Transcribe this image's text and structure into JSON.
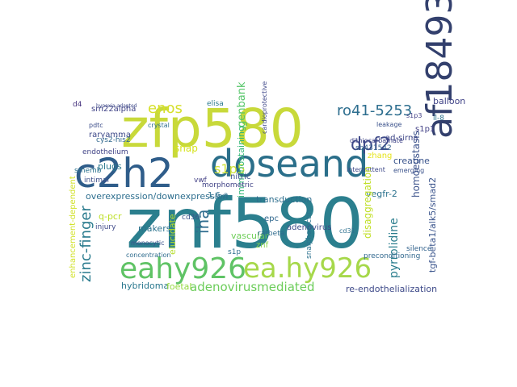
{
  "word_cloud": {
    "words": [
      {
        "text": "znf580",
        "color": "#2b7f8e"
      },
      {
        "text": "zfp580",
        "color": "#c8d93a"
      },
      {
        "text": "c2h2",
        "color": "#2f5d8a"
      },
      {
        "text": "doseand",
        "color": "#2b6f8a"
      },
      {
        "text": "af184939",
        "color": "#33406d"
      },
      {
        "text": "eahy926",
        "color": "#5fc365"
      },
      {
        "text": "ea.hy926",
        "color": "#a6d84a"
      },
      {
        "text": "adenovirusmediated",
        "color": "#6ccd5a"
      },
      {
        "text": "zinc-finger",
        "color": "#2a7b8e"
      },
      {
        "text": "dpf2",
        "color": "#3e4a89"
      },
      {
        "text": "ro41-5253",
        "color": "#2c6d8e"
      },
      {
        "text": "enos",
        "color": "#d6e02b"
      },
      {
        "text": "iha",
        "color": "#2f6c8e"
      },
      {
        "text": "s1p5",
        "color": "#cfe13a"
      },
      {
        "text": "pyrrolidine",
        "color": "#2c7e8e"
      },
      {
        "text": "overexpression/downexpression",
        "color": "#2d6e8e"
      },
      {
        "text": "enhancement-dependent",
        "color": "#d2e22b"
      },
      {
        "text": "tgf-beta1/alk5/smad2",
        "color": "#3a548c"
      },
      {
        "text": "homoeostasis",
        "color": "#3b528b"
      },
      {
        "text": "genbank",
        "color": "#54c568"
      },
      {
        "text": "immunostaining",
        "color": "#35b779"
      },
      {
        "text": "sm22alpha",
        "color": "#414487"
      },
      {
        "text": "rarγamma",
        "color": "#3f4a8a"
      },
      {
        "text": "endothelium",
        "color": "#414487"
      },
      {
        "text": "cys2-his2",
        "color": "#31688e"
      },
      {
        "text": "d4",
        "color": "#46337e"
      },
      {
        "text": "plugs",
        "color": "#2a788e"
      },
      {
        "text": "snap",
        "color": "#d5e21a"
      },
      {
        "text": "elisa",
        "color": "#2a788e"
      },
      {
        "text": "balloon",
        "color": "#404387"
      },
      {
        "text": "s1p1",
        "color": "#424186"
      },
      {
        "text": "vegfr-2",
        "color": "#2c728e"
      },
      {
        "text": "creatine",
        "color": "#3a548c"
      },
      {
        "text": "zhang",
        "color": "#e5e419"
      },
      {
        "text": "transduction",
        "color": "#2e6e8e"
      },
      {
        "text": "nitric",
        "color": "#3b528b"
      },
      {
        "text": "adenovirus",
        "color": "#3e4c8a"
      },
      {
        "text": "makers",
        "color": "#2c738e"
      },
      {
        "text": "elucidate",
        "color": "#b5de2b"
      },
      {
        "text": "vascular",
        "color": "#6ece58"
      },
      {
        "text": "znf",
        "color": "#86d549"
      },
      {
        "text": "epc",
        "color": "#31688e"
      },
      {
        "text": "hybridoma",
        "color": "#2a788e"
      },
      {
        "text": "foetal",
        "color": "#95d840"
      },
      {
        "text": "concentration",
        "color": "#2f6c8e"
      },
      {
        "text": "re-endothelialization",
        "color": "#3e4a89"
      },
      {
        "text": "silence",
        "color": "#33638d"
      },
      {
        "text": "preconditioning",
        "color": "#31688e"
      },
      {
        "text": "q-pcr",
        "color": "#bddf26"
      },
      {
        "text": "vwf",
        "color": "#423f85"
      },
      {
        "text": "1.6-a",
        "color": "#2d708e"
      },
      {
        "text": "s1p",
        "color": "#2e6f8e"
      },
      {
        "text": "morphometric",
        "color": "#414487"
      },
      {
        "text": "rarbeta",
        "color": "#2f6c8e"
      },
      {
        "text": "cd36",
        "color": "#3a548c"
      },
      {
        "text": "injury",
        "color": "#3e4989"
      },
      {
        "text": "monocytic",
        "color": "#3b528b"
      },
      {
        "text": "smemb",
        "color": "#2c728e"
      },
      {
        "text": "intimal",
        "color": "#3d4e8a"
      },
      {
        "text": "il-8",
        "color": "#2c738e"
      },
      {
        "text": "ad-sirna",
        "color": "#3f4788"
      },
      {
        "text": "sb431542",
        "color": "#34608d"
      },
      {
        "text": "dithiocarbamate",
        "color": "#404588"
      },
      {
        "text": "leakage",
        "color": "#3b528b"
      },
      {
        "text": "intermittent",
        "color": "#3e4989"
      },
      {
        "text": "cardioprotective",
        "color": "#3f4889"
      },
      {
        "text": "snalpha-actin",
        "color": "#2c728e"
      },
      {
        "text": "disaggregation",
        "color": "#c0df25"
      },
      {
        "text": "s1p3",
        "color": "#423f85"
      },
      {
        "text": "emerging",
        "color": "#3b528b"
      },
      {
        "text": "cd31",
        "color": "#2d708e"
      },
      {
        "text": "pdtc",
        "color": "#3d4e8a"
      },
      {
        "text": "crystal",
        "color": "#2e6f8e"
      },
      {
        "text": "hypoxia-adapted",
        "color": "#3e4a89"
      }
    ]
  }
}
